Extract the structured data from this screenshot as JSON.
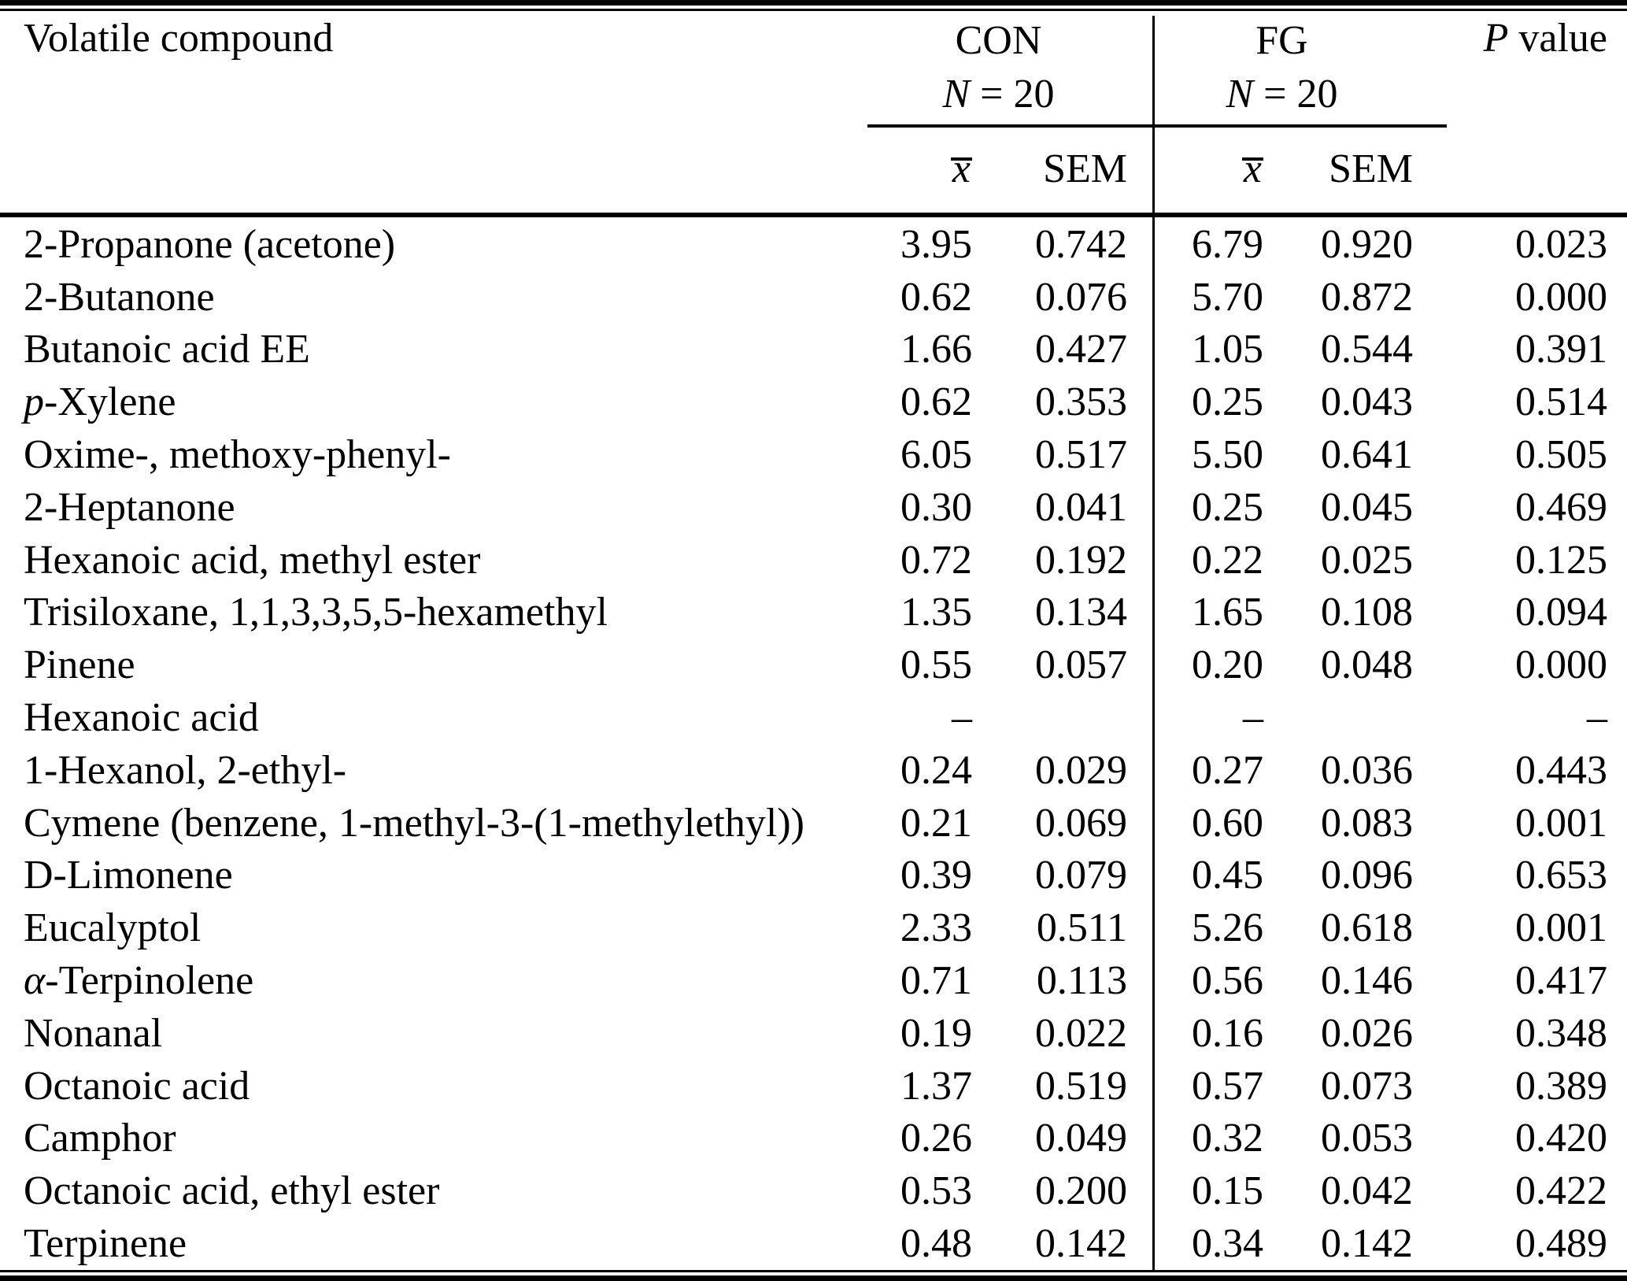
{
  "table": {
    "header": {
      "compound_col": "Volatile compound",
      "group_con": {
        "name": "CON",
        "n_italic": "N",
        "n_rest": " = 20"
      },
      "group_fg": {
        "name": "FG",
        "n_italic": "N",
        "n_rest": " = 20"
      },
      "p_col": {
        "italic": "P",
        "rest": " value"
      },
      "mean_label": "x",
      "sem_label": "SEM"
    },
    "rows": [
      {
        "compound": {
          "italic": "",
          "text": "2-Propanone (acetone)"
        },
        "con_mean": "3.95",
        "con_sem": "0.742",
        "fg_mean": "6.79",
        "fg_sem": "0.920",
        "p": "0.023"
      },
      {
        "compound": {
          "italic": "",
          "text": "2-Butanone"
        },
        "con_mean": "0.62",
        "con_sem": "0.076",
        "fg_mean": "5.70",
        "fg_sem": "0.872",
        "p": "0.000"
      },
      {
        "compound": {
          "italic": "",
          "text": "Butanoic acid EE"
        },
        "con_mean": "1.66",
        "con_sem": "0.427",
        "fg_mean": "1.05",
        "fg_sem": "0.544",
        "p": "0.391"
      },
      {
        "compound": {
          "italic": "p",
          "text": "-Xylene"
        },
        "con_mean": "0.62",
        "con_sem": "0.353",
        "fg_mean": "0.25",
        "fg_sem": "0.043",
        "p": "0.514"
      },
      {
        "compound": {
          "italic": "",
          "text": "Oxime-, methoxy-phenyl-"
        },
        "con_mean": "6.05",
        "con_sem": "0.517",
        "fg_mean": "5.50",
        "fg_sem": "0.641",
        "p": "0.505"
      },
      {
        "compound": {
          "italic": "",
          "text": "2-Heptanone"
        },
        "con_mean": "0.30",
        "con_sem": "0.041",
        "fg_mean": "0.25",
        "fg_sem": "0.045",
        "p": "0.469"
      },
      {
        "compound": {
          "italic": "",
          "text": "Hexanoic acid, methyl ester"
        },
        "con_mean": "0.72",
        "con_sem": "0.192",
        "fg_mean": "0.22",
        "fg_sem": "0.025",
        "p": "0.125"
      },
      {
        "compound": {
          "italic": "",
          "text": "Trisiloxane, 1,1,3,3,5,5-hexamethyl"
        },
        "con_mean": "1.35",
        "con_sem": "0.134",
        "fg_mean": "1.65",
        "fg_sem": "0.108",
        "p": "0.094"
      },
      {
        "compound": {
          "italic": "",
          "text": "Pinene"
        },
        "con_mean": "0.55",
        "con_sem": "0.057",
        "fg_mean": "0.20",
        "fg_sem": "0.048",
        "p": "0.000"
      },
      {
        "compound": {
          "italic": "",
          "text": "Hexanoic acid"
        },
        "con_mean": "–",
        "con_sem": "",
        "fg_mean": "–",
        "fg_sem": "",
        "p": "–"
      },
      {
        "compound": {
          "italic": "",
          "text": "1-Hexanol, 2-ethyl-"
        },
        "con_mean": "0.24",
        "con_sem": "0.029",
        "fg_mean": "0.27",
        "fg_sem": "0.036",
        "p": "0.443"
      },
      {
        "compound": {
          "italic": "",
          "text": "Cymene (benzene, 1-methyl-3-(1-methylethyl))"
        },
        "con_mean": "0.21",
        "con_sem": "0.069",
        "fg_mean": "0.60",
        "fg_sem": "0.083",
        "p": "0.001"
      },
      {
        "compound": {
          "italic": "",
          "text": "D-Limonene"
        },
        "con_mean": "0.39",
        "con_sem": "0.079",
        "fg_mean": "0.45",
        "fg_sem": "0.096",
        "p": "0.653"
      },
      {
        "compound": {
          "italic": "",
          "text": "Eucalyptol"
        },
        "con_mean": "2.33",
        "con_sem": "0.511",
        "fg_mean": "5.26",
        "fg_sem": "0.618",
        "p": "0.001"
      },
      {
        "compound": {
          "italic": "α",
          "text": "-Terpinolene"
        },
        "con_mean": "0.71",
        "con_sem": "0.113",
        "fg_mean": "0.56",
        "fg_sem": "0.146",
        "p": "0.417"
      },
      {
        "compound": {
          "italic": "",
          "text": "Nonanal"
        },
        "con_mean": "0.19",
        "con_sem": "0.022",
        "fg_mean": "0.16",
        "fg_sem": "0.026",
        "p": "0.348"
      },
      {
        "compound": {
          "italic": "",
          "text": "Octanoic acid"
        },
        "con_mean": "1.37",
        "con_sem": "0.519",
        "fg_mean": "0.57",
        "fg_sem": "0.073",
        "p": "0.389"
      },
      {
        "compound": {
          "italic": "",
          "text": "Camphor"
        },
        "con_mean": "0.26",
        "con_sem": "0.049",
        "fg_mean": "0.32",
        "fg_sem": "0.053",
        "p": "0.420"
      },
      {
        "compound": {
          "italic": "",
          "text": "Octanoic acid, ethyl ester"
        },
        "con_mean": "0.53",
        "con_sem": "0.200",
        "fg_mean": "0.15",
        "fg_sem": "0.042",
        "p": "0.422"
      },
      {
        "compound": {
          "italic": "",
          "text": "Terpinene"
        },
        "con_mean": "0.48",
        "con_sem": "0.142",
        "fg_mean": "0.34",
        "fg_sem": "0.142",
        "p": "0.489"
      }
    ]
  }
}
